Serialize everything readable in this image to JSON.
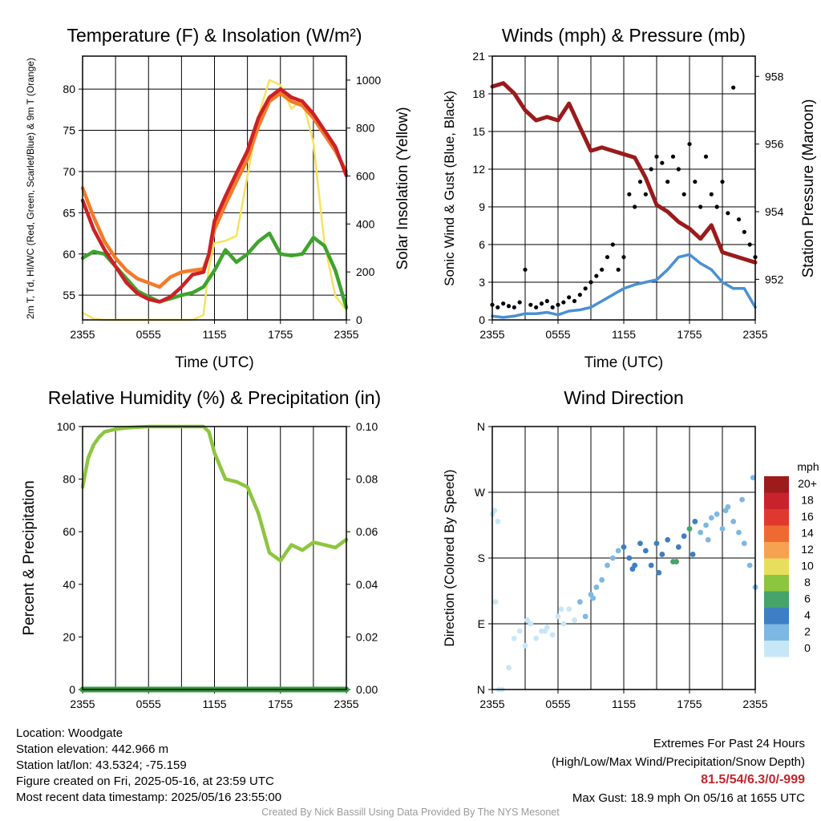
{
  "chart_data": [
    {
      "type": "line",
      "title": "Temperature (F) & Insolation (W/m²)",
      "xlabel": "Time (UTC)",
      "ylabel": "2m T, Td, HI/WC (Red, Green, Scarlet/Blue) & 9m T (Orange)",
      "ylabel_right": "Solar Insolation (Yellow)",
      "x_ticks": [
        "2355",
        "0555",
        "1155",
        "1755",
        "2355"
      ],
      "ylim": [
        52,
        84
      ],
      "y_ticks": [
        55,
        60,
        65,
        70,
        75,
        80
      ],
      "ylim_right": [
        0,
        1100
      ],
      "y_ticks_right": [
        0,
        200,
        400,
        600,
        800,
        1000
      ],
      "grid": true,
      "x_hours": [
        0,
        1,
        2,
        3,
        4,
        5,
        6,
        7,
        8,
        9,
        10,
        11,
        11.5,
        12,
        13,
        14,
        15,
        16,
        17,
        18,
        19,
        20,
        21,
        22,
        23,
        24
      ],
      "series": [
        {
          "name": "2m T",
          "color": "#cc2127",
          "axis": "left",
          "values": [
            66.5,
            63,
            60.5,
            58.5,
            56.5,
            55.2,
            54.5,
            54.2,
            54.8,
            56,
            57.5,
            57.8,
            60,
            64,
            67,
            69.8,
            72.5,
            76.5,
            79,
            80,
            79,
            78.5,
            77,
            75,
            73,
            69.5
          ]
        },
        {
          "name": "9m T",
          "color": "#f37b28",
          "axis": "left",
          "values": [
            68,
            64.5,
            61.5,
            59.5,
            58,
            57,
            56.5,
            56,
            57.2,
            57.8,
            58,
            58.2,
            60,
            63,
            66,
            68.8,
            71.5,
            75.5,
            78.5,
            79.5,
            78.5,
            78,
            76.5,
            74.5,
            72.5,
            70
          ]
        },
        {
          "name": "Td",
          "color": "#3ea42c",
          "axis": "left",
          "values": [
            59.5,
            60.3,
            60,
            58.5,
            57,
            55.5,
            54.8,
            54.2,
            54.6,
            55,
            55.3,
            56,
            57,
            58,
            60.5,
            59,
            60,
            61.5,
            62.5,
            60,
            59.8,
            60,
            62,
            61,
            58,
            53.5
          ]
        },
        {
          "name": "Solar Insolation",
          "color": "#f7e25e",
          "axis": "right",
          "values": [
            30,
            5,
            0,
            0,
            0,
            0,
            0,
            0,
            0,
            0,
            0,
            20,
            220,
            320,
            330,
            350,
            600,
            850,
            1000,
            980,
            880,
            920,
            740,
            320,
            100,
            40
          ]
        }
      ]
    },
    {
      "type": "line",
      "title": "Winds (mph) & Pressure (mb)",
      "xlabel": "Time (UTC)",
      "ylabel": "Sonic Wind & Gust (Blue, Black)",
      "ylabel_right": "Station Pressure (Maroon)",
      "x_ticks": [
        "2355",
        "0555",
        "1155",
        "1755",
        "2355"
      ],
      "ylim": [
        0,
        21
      ],
      "y_ticks": [
        0,
        3,
        6,
        9,
        12,
        15,
        18,
        21
      ],
      "ylim_right": [
        950.8,
        958.6
      ],
      "y_ticks_right": [
        952,
        954,
        956,
        958
      ],
      "grid": true,
      "x_hours": [
        0,
        1,
        2,
        3,
        4,
        5,
        6,
        7,
        8,
        9,
        10,
        11,
        12,
        13,
        14,
        15,
        16,
        17,
        18,
        19,
        20,
        21,
        22,
        23,
        24
      ],
      "series": [
        {
          "name": "Sonic Wind",
          "color": "#4a90d4",
          "axis": "left",
          "values": [
            0.3,
            0.2,
            0.3,
            0.5,
            0.5,
            0.6,
            0.4,
            0.7,
            0.8,
            1,
            1.5,
            2,
            2.5,
            2.8,
            3,
            3.2,
            4,
            5,
            5.2,
            4.5,
            4,
            3,
            2.5,
            2.5,
            1
          ]
        },
        {
          "name": "Station Pressure",
          "color": "#9a1b1b",
          "axis": "right",
          "values": [
            957.7,
            957.8,
            957.5,
            957,
            956.7,
            956.8,
            956.7,
            957.2,
            956.5,
            955.8,
            955.9,
            955.8,
            955.7,
            955.6,
            955,
            954.2,
            954,
            953.7,
            953.5,
            953.2,
            953.6,
            952.8,
            952.7,
            952.6,
            952.5
          ]
        }
      ],
      "gusts": {
        "name": "Gust",
        "color": "#000000",
        "x": [
          0,
          0.5,
          1,
          1.5,
          2,
          2.5,
          3,
          3.5,
          4,
          4.5,
          5,
          5.5,
          6,
          6.5,
          7,
          7.5,
          8,
          8.5,
          9,
          9.5,
          10,
          10.5,
          11,
          11.5,
          12,
          12.5,
          13,
          13.5,
          14,
          14.5,
          15,
          15.5,
          16,
          16.5,
          17,
          17.5,
          18,
          18.5,
          19,
          19.5,
          20,
          20.5,
          21,
          21.5,
          22,
          22.5,
          23,
          23.5,
          24
        ],
        "y": [
          1.2,
          1,
          1.3,
          1.1,
          1,
          1.4,
          4,
          1.2,
          1,
          1.3,
          1.5,
          1,
          1.2,
          1.4,
          1.8,
          1.5,
          2,
          2.5,
          3,
          3.5,
          4,
          5,
          6,
          4,
          5,
          10,
          9,
          11,
          10,
          12,
          13,
          12.5,
          11,
          13,
          12,
          10,
          14,
          11,
          9,
          13,
          10,
          9,
          11,
          8.5,
          18.5,
          8,
          7,
          6,
          5
        ]
      }
    },
    {
      "type": "line",
      "title": "Relative Humidity (%) & Precipitation (in)",
      "xlabel": "",
      "ylabel": "Percent & Precipitation",
      "x_ticks": [
        "2355",
        "0555",
        "1155",
        "1755",
        "2355"
      ],
      "ylim": [
        0,
        100
      ],
      "y_ticks": [
        0,
        20,
        40,
        60,
        80,
        100
      ],
      "ylim_right": [
        0,
        0.1
      ],
      "y_ticks_right": [
        "0.00",
        "0.02",
        "0.04",
        "0.06",
        "0.08",
        "0.10"
      ],
      "grid": true,
      "x_hours": [
        0,
        0.5,
        1,
        1.5,
        2,
        3,
        4,
        5,
        6,
        7,
        8,
        9,
        10,
        11,
        11.5,
        12,
        13,
        14,
        15,
        16,
        17,
        18,
        19,
        20,
        21,
        22,
        23,
        24
      ],
      "series": [
        {
          "name": "Relative Humidity",
          "color": "#8cc63f",
          "axis": "left",
          "values": [
            77,
            88,
            93,
            96,
            98,
            99,
            99.5,
            99.8,
            100,
            100,
            100,
            100,
            100,
            100,
            98,
            90,
            80,
            79,
            77,
            67,
            52,
            49,
            55,
            53,
            56,
            55,
            54,
            57
          ]
        },
        {
          "name": "Precipitation",
          "color": "#2e9e3e",
          "axis": "right",
          "values": [
            0,
            0,
            0,
            0,
            0,
            0,
            0,
            0,
            0,
            0,
            0,
            0,
            0,
            0,
            0,
            0,
            0,
            0,
            0,
            0,
            0,
            0,
            0,
            0,
            0,
            0,
            0,
            0
          ]
        }
      ]
    },
    {
      "type": "scatter",
      "title": "Wind Direction",
      "xlabel": "",
      "ylabel": "Direction (Colored By Speed)",
      "x_ticks": [
        "2355",
        "0555",
        "1155",
        "1755",
        "2355"
      ],
      "y_ticks": [
        "N",
        "E",
        "S",
        "W",
        "N"
      ],
      "ylim": [
        0,
        360
      ],
      "grid": true,
      "legend": {
        "title": "mph",
        "labels": [
          "20+",
          "18",
          "16",
          "14",
          "12",
          "10",
          "8",
          "6",
          "4",
          "2",
          "0"
        ],
        "colors": [
          "#9e1b1b",
          "#c8232c",
          "#e0382f",
          "#ef6a30",
          "#f7a252",
          "#e7df5c",
          "#8cc63f",
          "#46a36a",
          "#3d7fc2",
          "#7db8e4",
          "#c7e7f7"
        ]
      },
      "x": [
        0,
        0.2,
        0.3,
        0.5,
        0.6,
        0.9,
        1.5,
        2,
        2.5,
        3,
        3.5,
        4,
        4.5,
        5,
        5.5,
        6,
        6.5,
        7,
        7.5,
        8,
        8.5,
        9,
        9.5,
        10,
        10.5,
        11,
        11.5,
        12,
        12.5,
        13,
        13.5,
        14,
        14.5,
        15,
        15.5,
        16,
        16.5,
        17,
        17.5,
        18,
        18.5,
        19,
        19.5,
        20,
        20.5,
        21,
        21.5,
        22,
        22.5,
        23,
        23.5,
        24,
        3.2,
        4.8,
        6.3,
        9.2,
        12.8,
        15.2,
        16.8,
        18.3,
        19.7,
        21.3,
        22.8,
        23.8
      ],
      "y": [
        240,
        245,
        120,
        230,
        0,
        0,
        30,
        70,
        80,
        60,
        90,
        70,
        80,
        85,
        75,
        100,
        90,
        110,
        95,
        120,
        100,
        130,
        140,
        150,
        170,
        180,
        190,
        195,
        180,
        170,
        200,
        190,
        170,
        200,
        185,
        205,
        175,
        195,
        210,
        220,
        230,
        215,
        225,
        235,
        240,
        220,
        250,
        230,
        215,
        200,
        170,
        140,
        95,
        80,
        110,
        125,
        165,
        160,
        175,
        185,
        205,
        245,
        260,
        290
      ],
      "speeds": [
        1,
        1,
        1,
        1,
        1,
        1,
        1,
        1,
        1,
        1,
        1,
        1,
        1,
        1,
        1,
        1,
        1,
        1,
        1,
        2,
        2,
        2,
        2,
        2,
        2,
        3,
        3,
        4,
        4,
        4,
        4,
        4,
        5,
        4,
        4,
        5,
        6,
        4,
        5,
        6,
        4,
        3,
        3,
        3,
        2,
        3,
        2,
        3,
        2,
        2,
        2,
        2,
        1,
        1,
        1,
        2,
        4,
        4,
        6,
        4,
        3,
        2,
        2,
        2
      ]
    }
  ],
  "info": {
    "location": "Location: Woodgate",
    "elevation": "Station elevation: 442.966 m",
    "latlon": "Station lat/lon: 43.5324; -75.159",
    "created": "Figure created on Fri, 2025-05-16, at 23:59 UTC",
    "recent": "Most recent data timestamp: 2025/05/16 23:55:00",
    "extremes_title": "Extremes For Past 24 Hours",
    "extremes_sub": "(High/Low/Max Wind/Precipitation/Snow Depth)",
    "extremes_values": "81.5/54/6.3/0/-999",
    "max_gust": "Max Gust: 18.9 mph On 05/16 at 1655 UTC"
  },
  "credit": "Created By Nick Bassill Using Data Provided By The NYS Mesonet"
}
